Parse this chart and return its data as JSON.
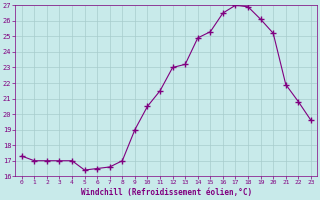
{
  "x": [
    0,
    1,
    2,
    3,
    4,
    5,
    6,
    7,
    8,
    9,
    10,
    11,
    12,
    13,
    14,
    15,
    16,
    17,
    18,
    19,
    20,
    21,
    22,
    23
  ],
  "y": [
    17.3,
    17.0,
    17.0,
    17.0,
    17.0,
    16.4,
    16.5,
    16.6,
    17.0,
    19.0,
    20.5,
    21.5,
    23.0,
    23.2,
    24.9,
    25.3,
    26.5,
    27.0,
    26.9,
    26.1,
    25.2,
    21.9,
    20.8,
    19.6
  ],
  "ylim": [
    16,
    27
  ],
  "yticks": [
    16,
    17,
    18,
    19,
    20,
    21,
    22,
    23,
    24,
    25,
    26,
    27
  ],
  "xticks": [
    0,
    1,
    2,
    3,
    4,
    5,
    6,
    7,
    8,
    9,
    10,
    11,
    12,
    13,
    14,
    15,
    16,
    17,
    18,
    19,
    20,
    21,
    22,
    23
  ],
  "line_color": "#800080",
  "marker": "+",
  "marker_size": 4,
  "bg_color": "#c8eaea",
  "grid_color": "#a8cccc",
  "xlabel": "Windchill (Refroidissement éolien,°C)",
  "xlabel_color": "#800080",
  "tick_color": "#800080",
  "spine_color": "#800080"
}
